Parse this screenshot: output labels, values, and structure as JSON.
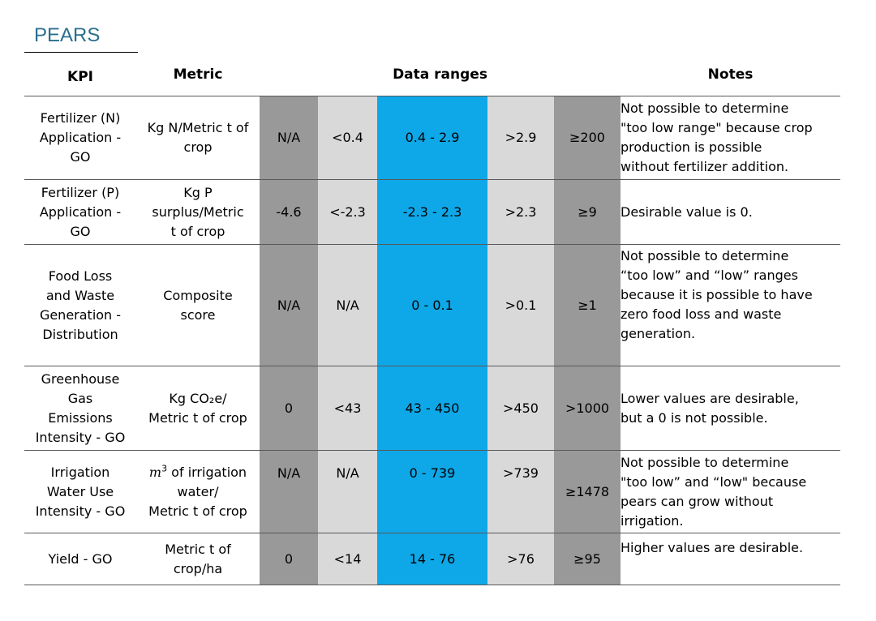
{
  "title": "PEARS",
  "headers": {
    "kpi": "KPI",
    "metric": "Metric",
    "ranges": "Data ranges",
    "notes": "Notes"
  },
  "rows": [
    {
      "kpi": [
        "Fertilizer (N)",
        "Application -",
        "GO"
      ],
      "metric": [
        "Kg N/Metric t of",
        "crop"
      ],
      "ranges": [
        "N/A",
        "<0.4",
        "0.4 - 2.9",
        ">2.9",
        "≥200"
      ],
      "notes": [
        "Not possible to determine",
        "\"too low range\" because crop",
        "production is possible",
        "without fertilizer addition."
      ]
    },
    {
      "kpi": [
        "Fertilizer (P)",
        "Application -",
        "GO"
      ],
      "metric": [
        "Kg P",
        "surplus/Metric",
        "t of crop"
      ],
      "ranges": [
        "-4.6",
        "<-2.3",
        "-2.3 - 2.3",
        ">2.3",
        "≥9"
      ],
      "notes": [
        "Desirable value is 0."
      ]
    },
    {
      "kpi": [
        "Food Loss",
        "and Waste",
        "Generation -",
        "Distribution"
      ],
      "metric": [
        "Composite",
        "score"
      ],
      "ranges": [
        "N/A",
        "N/A",
        "0 - 0.1",
        ">0.1",
        "≥1"
      ],
      "notes": [
        "Not possible to determine",
        "“too low” and “low” ranges",
        "because it is possible to have",
        "zero food loss and waste",
        "generation."
      ]
    },
    {
      "kpi": [
        "Greenhouse",
        "Gas",
        "Emissions",
        "Intensity - GO"
      ],
      "metric": [
        "Kg CO₂e/",
        "Metric t of crop"
      ],
      "ranges": [
        "0",
        "<43",
        "43 - 450",
        ">450",
        ">1000"
      ],
      "notes": [
        "Lower values are desirable,",
        "but a 0 is not possible."
      ]
    },
    {
      "kpi": [
        "Irrigation",
        "Water Use",
        "Intensity - GO"
      ],
      "metric_math": "m",
      "metric_sup": "3",
      "metric": [
        " of irrigation",
        "water/",
        "Metric t of crop"
      ],
      "ranges": [
        "N/A",
        "N/A",
        "0 - 739",
        ">739",
        "≥1478"
      ],
      "notes": [
        "Not possible to determine",
        "\"too low” and “low\" because",
        "pears can grow without",
        "irrigation."
      ]
    },
    {
      "kpi": [
        "Yield - GO"
      ],
      "metric": [
        "Metric t of",
        "crop/ha"
      ],
      "ranges": [
        "0",
        "<14",
        "14 - 76",
        ">76",
        "≥95"
      ],
      "notes": [
        "Higher values are desirable."
      ]
    }
  ]
}
